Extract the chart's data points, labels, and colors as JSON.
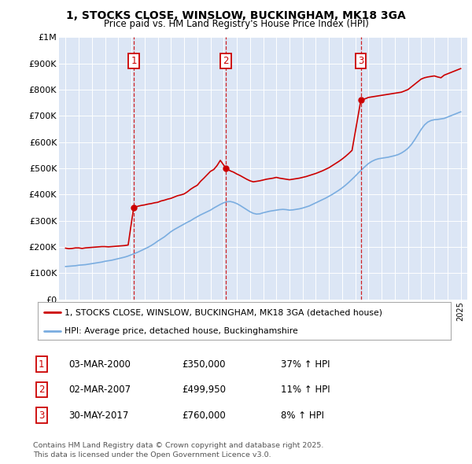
{
  "title": "1, STOCKS CLOSE, WINSLOW, BUCKINGHAM, MK18 3GA",
  "subtitle": "Price paid vs. HM Land Registry's House Price Index (HPI)",
  "background_color": "#dce6f5",
  "x_start_year": 1994.5,
  "x_end_year": 2025.5,
  "y_min": 0,
  "y_max": 1000000,
  "y_ticks": [
    0,
    100000,
    200000,
    300000,
    400000,
    500000,
    600000,
    700000,
    800000,
    900000,
    1000000
  ],
  "y_tick_labels": [
    "£0",
    "£100K",
    "£200K",
    "£300K",
    "£400K",
    "£500K",
    "£600K",
    "£700K",
    "£800K",
    "£900K",
    "£1M"
  ],
  "sale_color": "#cc0000",
  "hpi_color": "#7aade0",
  "sale_label": "1, STOCKS CLOSE, WINSLOW, BUCKINGHAM, MK18 3GA (detached house)",
  "hpi_label": "HPI: Average price, detached house, Buckinghamshire",
  "sales": [
    {
      "date": 2000.17,
      "price": 350000,
      "label": "1",
      "display_date": "03-MAR-2000",
      "pct": "37% ↑ HPI"
    },
    {
      "date": 2007.17,
      "price": 499950,
      "label": "2",
      "display_date": "02-MAR-2007",
      "pct": "11% ↑ HPI"
    },
    {
      "date": 2017.42,
      "price": 760000,
      "label": "3",
      "display_date": "30-MAY-2017",
      "pct": "8% ↑ HPI"
    }
  ],
  "sale_line_x": [
    1995.0,
    1995.25,
    1995.5,
    1995.75,
    1996.0,
    1996.25,
    1996.5,
    1996.75,
    1997.0,
    1997.25,
    1997.5,
    1997.75,
    1998.0,
    1998.25,
    1998.5,
    1998.75,
    1999.0,
    1999.25,
    1999.5,
    1999.75,
    2000.17,
    2000.5,
    2000.75,
    2001.0,
    2001.25,
    2001.5,
    2001.75,
    2002.0,
    2002.25,
    2002.5,
    2002.75,
    2003.0,
    2003.25,
    2003.5,
    2003.75,
    2004.0,
    2004.25,
    2004.5,
    2004.75,
    2005.0,
    2005.25,
    2005.5,
    2005.75,
    2006.0,
    2006.25,
    2006.5,
    2006.75,
    2007.17,
    2007.5,
    2007.75,
    2008.0,
    2008.25,
    2008.5,
    2008.75,
    2009.0,
    2009.25,
    2009.5,
    2009.75,
    2010.0,
    2010.25,
    2010.5,
    2010.75,
    2011.0,
    2011.25,
    2011.5,
    2011.75,
    2012.0,
    2012.25,
    2012.5,
    2012.75,
    2013.0,
    2013.25,
    2013.5,
    2013.75,
    2014.0,
    2014.25,
    2014.5,
    2014.75,
    2015.0,
    2015.25,
    2015.5,
    2015.75,
    2016.0,
    2016.25,
    2016.5,
    2016.75,
    2017.42,
    2017.75,
    2018.0,
    2018.25,
    2018.5,
    2018.75,
    2019.0,
    2019.25,
    2019.5,
    2019.75,
    2020.0,
    2020.25,
    2020.5,
    2020.75,
    2021.0,
    2021.25,
    2021.5,
    2021.75,
    2022.0,
    2022.25,
    2022.5,
    2022.75,
    2023.0,
    2023.25,
    2023.5,
    2023.75,
    2024.0,
    2024.25,
    2024.5,
    2024.75,
    2025.0
  ],
  "sale_line_y": [
    195000,
    193000,
    194000,
    196000,
    196000,
    194000,
    196000,
    197000,
    198000,
    199000,
    200000,
    201000,
    201000,
    200000,
    201000,
    202000,
    203000,
    204000,
    205000,
    207000,
    350000,
    355000,
    358000,
    360000,
    363000,
    365000,
    368000,
    370000,
    375000,
    378000,
    382000,
    385000,
    390000,
    395000,
    398000,
    402000,
    410000,
    420000,
    428000,
    435000,
    450000,
    462000,
    475000,
    488000,
    495000,
    510000,
    530000,
    499950,
    490000,
    485000,
    478000,
    472000,
    465000,
    458000,
    452000,
    448000,
    450000,
    452000,
    455000,
    458000,
    460000,
    462000,
    465000,
    462000,
    460000,
    458000,
    456000,
    458000,
    460000,
    462000,
    465000,
    468000,
    472000,
    476000,
    480000,
    485000,
    490000,
    496000,
    502000,
    510000,
    518000,
    526000,
    535000,
    545000,
    556000,
    568000,
    760000,
    765000,
    770000,
    772000,
    774000,
    776000,
    778000,
    780000,
    782000,
    784000,
    786000,
    788000,
    790000,
    795000,
    800000,
    810000,
    820000,
    830000,
    840000,
    845000,
    848000,
    850000,
    852000,
    848000,
    845000,
    855000,
    860000,
    865000,
    870000,
    875000,
    880000
  ],
  "hpi_line_x": [
    1995.0,
    1995.25,
    1995.5,
    1995.75,
    1996.0,
    1996.25,
    1996.5,
    1996.75,
    1997.0,
    1997.25,
    1997.5,
    1997.75,
    1998.0,
    1998.25,
    1998.5,
    1998.75,
    1999.0,
    1999.25,
    1999.5,
    1999.75,
    2000.0,
    2000.25,
    2000.5,
    2000.75,
    2001.0,
    2001.25,
    2001.5,
    2001.75,
    2002.0,
    2002.25,
    2002.5,
    2002.75,
    2003.0,
    2003.25,
    2003.5,
    2003.75,
    2004.0,
    2004.25,
    2004.5,
    2004.75,
    2005.0,
    2005.25,
    2005.5,
    2005.75,
    2006.0,
    2006.25,
    2006.5,
    2006.75,
    2007.0,
    2007.25,
    2007.5,
    2007.75,
    2008.0,
    2008.25,
    2008.5,
    2008.75,
    2009.0,
    2009.25,
    2009.5,
    2009.75,
    2010.0,
    2010.25,
    2010.5,
    2010.75,
    2011.0,
    2011.25,
    2011.5,
    2011.75,
    2012.0,
    2012.25,
    2012.5,
    2012.75,
    2013.0,
    2013.25,
    2013.5,
    2013.75,
    2014.0,
    2014.25,
    2014.5,
    2014.75,
    2015.0,
    2015.25,
    2015.5,
    2015.75,
    2016.0,
    2016.25,
    2016.5,
    2016.75,
    2017.0,
    2017.25,
    2017.5,
    2017.75,
    2018.0,
    2018.25,
    2018.5,
    2018.75,
    2019.0,
    2019.25,
    2019.5,
    2019.75,
    2020.0,
    2020.25,
    2020.5,
    2020.75,
    2021.0,
    2021.25,
    2021.5,
    2021.75,
    2022.0,
    2022.25,
    2022.5,
    2022.75,
    2023.0,
    2023.25,
    2023.5,
    2023.75,
    2024.0,
    2024.25,
    2024.5,
    2024.75,
    2025.0
  ],
  "hpi_line_y": [
    125000,
    126000,
    127000,
    128000,
    130000,
    131000,
    132000,
    134000,
    136000,
    138000,
    140000,
    142000,
    145000,
    147000,
    149000,
    152000,
    155000,
    158000,
    161000,
    165000,
    170000,
    175000,
    180000,
    186000,
    192000,
    198000,
    205000,
    213000,
    222000,
    230000,
    238000,
    248000,
    258000,
    266000,
    273000,
    280000,
    287000,
    294000,
    300000,
    308000,
    315000,
    322000,
    328000,
    334000,
    340000,
    348000,
    355000,
    362000,
    368000,
    372000,
    373000,
    370000,
    365000,
    358000,
    350000,
    342000,
    334000,
    328000,
    325000,
    326000,
    330000,
    333000,
    336000,
    338000,
    340000,
    342000,
    343000,
    342000,
    340000,
    341000,
    343000,
    345000,
    348000,
    352000,
    356000,
    362000,
    368000,
    374000,
    380000,
    386000,
    393000,
    400000,
    408000,
    416000,
    425000,
    435000,
    446000,
    458000,
    470000,
    483000,
    495000,
    507000,
    518000,
    526000,
    532000,
    536000,
    538000,
    540000,
    542000,
    545000,
    548000,
    552000,
    558000,
    566000,
    576000,
    590000,
    608000,
    628000,
    648000,
    665000,
    676000,
    682000,
    685000,
    686000,
    688000,
    690000,
    695000,
    700000,
    705000,
    710000,
    715000
  ],
  "footer": "Contains HM Land Registry data © Crown copyright and database right 2025.\nThis data is licensed under the Open Government Licence v3.0.",
  "table_rows": [
    [
      "1",
      "03-MAR-2000",
      "£350,000",
      "37% ↑ HPI"
    ],
    [
      "2",
      "02-MAR-2007",
      "£499,950",
      "11% ↑ HPI"
    ],
    [
      "3",
      "30-MAY-2017",
      "£760,000",
      "8% ↑ HPI"
    ]
  ]
}
